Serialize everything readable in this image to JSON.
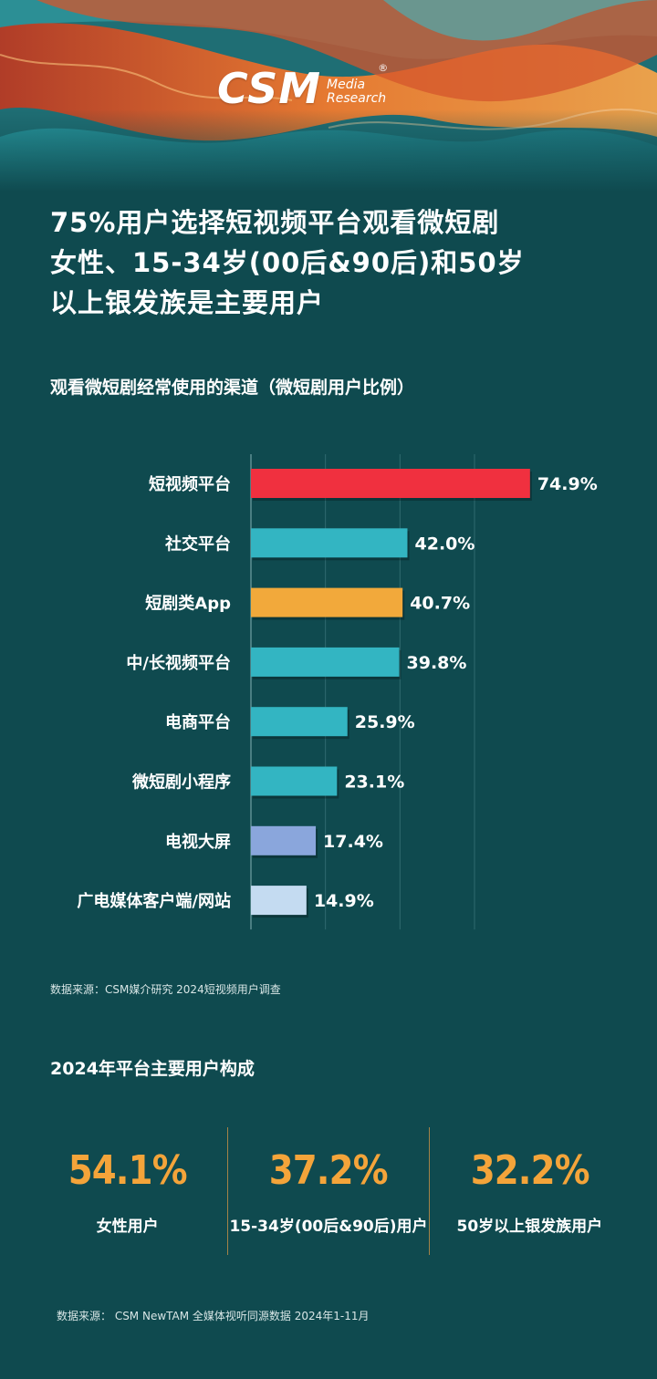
{
  "brand": {
    "logo_main": "CSM",
    "logo_sub_line1": "Media",
    "logo_sub_line2": "Research",
    "logo_reg": "®"
  },
  "headline": {
    "line1": "75%用户选择短视频平台观看微短剧",
    "line2": "女性、15-34岁(00后&90后)和50岁",
    "line3": "以上银发族是主要用户"
  },
  "chart_data": {
    "type": "bar",
    "orientation": "horizontal",
    "title": "观看微短剧经常使用的渠道（微短剧用户比例）",
    "categories": [
      "短视频平台",
      "社交平台",
      "短剧类App",
      "中/长视频平台",
      "电商平台",
      "微短剧小程序",
      "电视大屏",
      "广电媒体客户端/网站"
    ],
    "values": [
      74.9,
      42.0,
      40.7,
      39.8,
      25.9,
      23.1,
      17.4,
      14.9
    ],
    "value_labels": [
      "74.9%",
      "42.0%",
      "40.7%",
      "39.8%",
      "25.9%",
      "23.1%",
      "17.4%",
      "14.9%"
    ],
    "colors": [
      "#f0303f",
      "#33b5c2",
      "#f2a93b",
      "#33b5c2",
      "#33b5c2",
      "#33b5c2",
      "#8aa6dc",
      "#c4dbf1"
    ],
    "xlim": [
      0,
      80
    ],
    "grid": true
  },
  "source1": "数据来源：CSM媒介研究 2024短视频用户调查",
  "section_title": "2024年平台主要用户构成",
  "stats": [
    {
      "value": "54.1%",
      "label": "女性用户"
    },
    {
      "value": "37.2%",
      "label": "15-34岁(00后&90后)用户"
    },
    {
      "value": "32.2%",
      "label": "50岁以上银发族用户"
    }
  ],
  "source2": "数据来源： CSM NewTAM 全媒体视听同源数据 2024年1-11月",
  "colors": {
    "background": "#0f4a4f",
    "accent": "#f4a43a"
  }
}
